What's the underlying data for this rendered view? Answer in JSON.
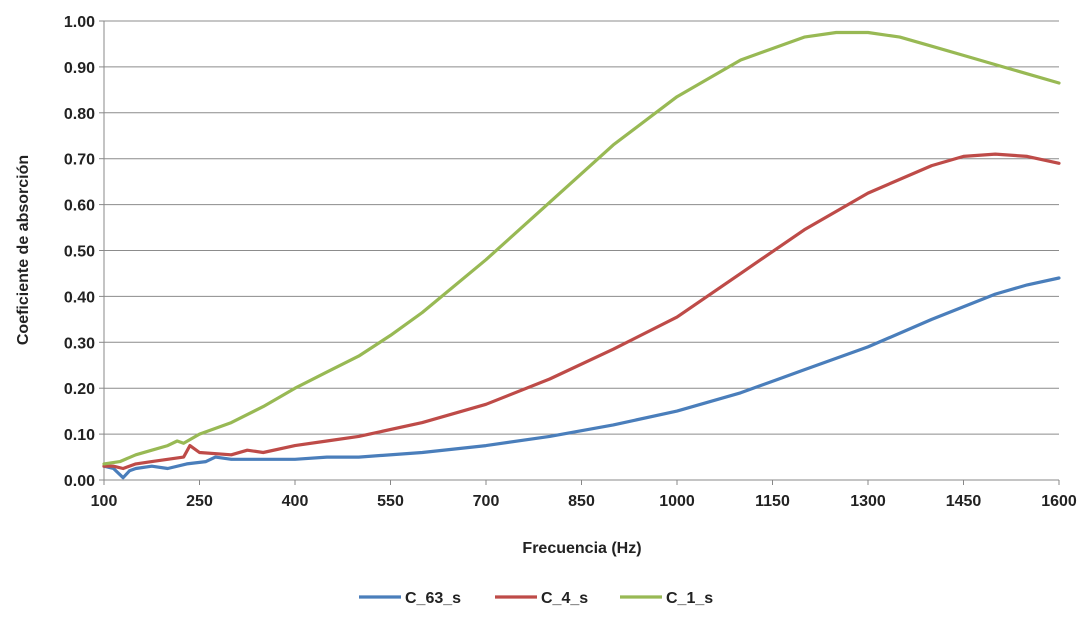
{
  "chart_data": {
    "type": "line",
    "title": "",
    "xlabel": "Frecuencia (Hz)",
    "ylabel": "Coeficiente de absorción",
    "xlim": [
      100,
      1600
    ],
    "ylim": [
      0,
      1
    ],
    "x_ticks": [
      "100",
      "250",
      "400",
      "550",
      "700",
      "850",
      "1000",
      "1150",
      "1300",
      "1450",
      "1600"
    ],
    "y_ticks": [
      "0.00",
      "0.10",
      "0.20",
      "0.30",
      "0.40",
      "0.50",
      "0.60",
      "0.70",
      "0.80",
      "0.90",
      "1.00"
    ],
    "grid": "horizontal",
    "legend_position": "bottom",
    "series": [
      {
        "name": "C_63_s",
        "color": "#4a7ebb",
        "x": [
          100,
          115,
          130,
          140,
          150,
          175,
          200,
          230,
          260,
          275,
          300,
          350,
          400,
          450,
          500,
          600,
          700,
          800,
          900,
          1000,
          1100,
          1200,
          1300,
          1400,
          1500,
          1550,
          1600
        ],
        "y": [
          0.03,
          0.025,
          0.005,
          0.02,
          0.025,
          0.03,
          0.025,
          0.035,
          0.04,
          0.05,
          0.045,
          0.045,
          0.045,
          0.05,
          0.05,
          0.06,
          0.075,
          0.095,
          0.12,
          0.15,
          0.19,
          0.24,
          0.29,
          0.35,
          0.405,
          0.425,
          0.44
        ]
      },
      {
        "name": "C_4_s",
        "color": "#be4b48",
        "x": [
          100,
          115,
          130,
          150,
          175,
          200,
          225,
          235,
          250,
          300,
          325,
          350,
          400,
          450,
          500,
          600,
          700,
          800,
          900,
          1000,
          1100,
          1200,
          1300,
          1400,
          1450,
          1500,
          1550,
          1600
        ],
        "y": [
          0.03,
          0.03,
          0.025,
          0.035,
          0.04,
          0.045,
          0.05,
          0.075,
          0.06,
          0.055,
          0.065,
          0.06,
          0.075,
          0.085,
          0.095,
          0.125,
          0.165,
          0.22,
          0.285,
          0.355,
          0.45,
          0.545,
          0.625,
          0.685,
          0.705,
          0.71,
          0.705,
          0.69
        ]
      },
      {
        "name": "C_1_s",
        "color": "#98b954",
        "x": [
          100,
          125,
          150,
          175,
          200,
          215,
          225,
          250,
          300,
          350,
          400,
          450,
          500,
          550,
          600,
          700,
          800,
          900,
          1000,
          1100,
          1200,
          1250,
          1300,
          1350,
          1400,
          1450,
          1500,
          1550,
          1600
        ],
        "y": [
          0.035,
          0.04,
          0.055,
          0.065,
          0.075,
          0.085,
          0.08,
          0.1,
          0.125,
          0.16,
          0.2,
          0.235,
          0.27,
          0.315,
          0.365,
          0.48,
          0.605,
          0.73,
          0.835,
          0.915,
          0.965,
          0.975,
          0.975,
          0.965,
          0.945,
          0.925,
          0.905,
          0.885,
          0.865
        ]
      }
    ]
  }
}
